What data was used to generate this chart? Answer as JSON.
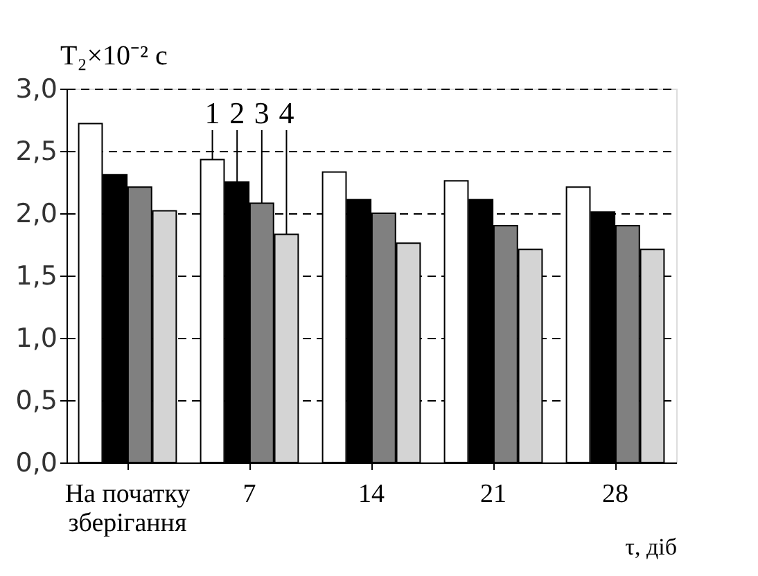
{
  "chart_data": {
    "type": "bar",
    "ylabel": "T₂×10⁻² c",
    "xlabel": "τ, діб",
    "categories": [
      "На початку зберігання",
      "7",
      "14",
      "21",
      "28"
    ],
    "series": [
      {
        "name": "1",
        "color": "#ffffff",
        "values": [
          2.72,
          2.43,
          2.33,
          2.26,
          2.21
        ]
      },
      {
        "name": "2",
        "color": "#000000",
        "values": [
          2.31,
          2.25,
          2.11,
          2.11,
          2.01
        ]
      },
      {
        "name": "3",
        "color": "#808080",
        "values": [
          2.21,
          2.08,
          2.0,
          1.9,
          1.9
        ]
      },
      {
        "name": "4",
        "color": "#d4d4d4",
        "values": [
          2.02,
          1.83,
          1.76,
          1.71,
          1.71
        ]
      }
    ],
    "ylim": [
      0,
      3
    ],
    "yticks": [
      {
        "value": 0,
        "label": "0,0"
      },
      {
        "value": 0.5,
        "label": "0,5"
      },
      {
        "value": 1,
        "label": "1,0"
      },
      {
        "value": 1.5,
        "label": "1,5"
      },
      {
        "value": 2,
        "label": "2,0"
      },
      {
        "value": 2.5,
        "label": "2,5"
      },
      {
        "value": 3,
        "label": "3,0"
      }
    ],
    "grid": "y",
    "legend": false
  }
}
